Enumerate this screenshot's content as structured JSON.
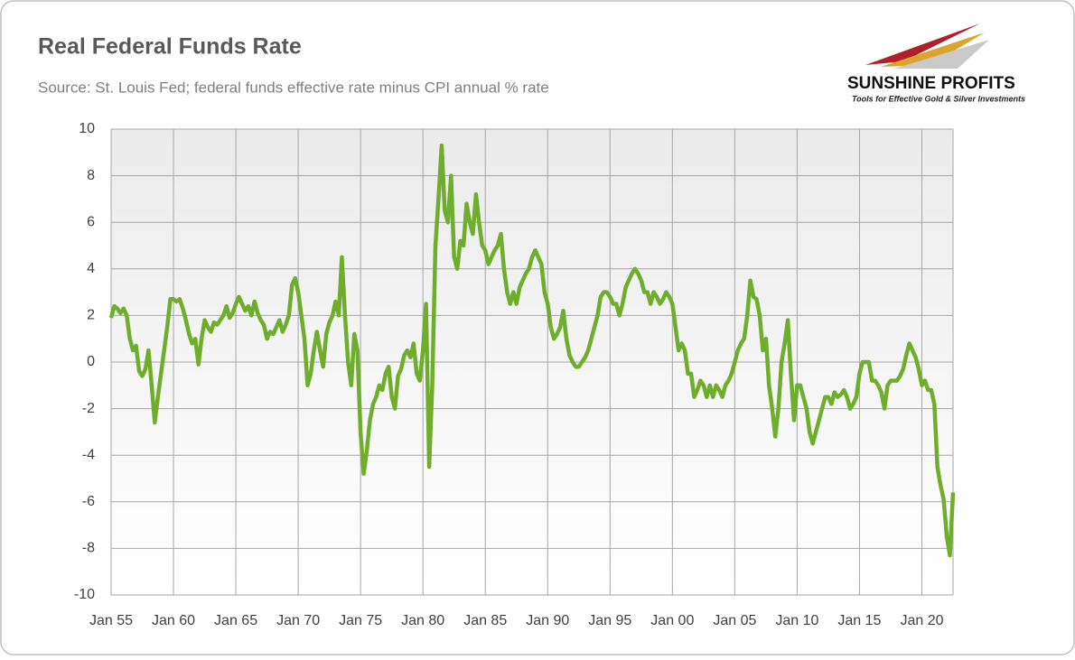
{
  "chart_data": {
    "type": "line",
    "title": "Real Federal Funds Rate",
    "subtitle": "Source: St. Louis Fed; federal funds effective rate minus CPI annual % rate",
    "x": [
      "Jan 55",
      "Apr 55",
      "Jul 55",
      "Oct 55",
      "Jan 56",
      "Apr 56",
      "Jul 56",
      "Oct 56",
      "Jan 57",
      "Apr 57",
      "Jul 57",
      "Oct 57",
      "Jan 58",
      "Apr 58",
      "Jul 58",
      "Oct 58",
      "Jan 59",
      "Apr 59",
      "Jul 59",
      "Oct 59",
      "Jan 60",
      "Apr 60",
      "Jul 60",
      "Oct 60",
      "Jan 61",
      "Apr 61",
      "Jul 61",
      "Oct 61",
      "Jan 62",
      "Apr 62",
      "Jul 62",
      "Oct 62",
      "Jan 63",
      "Apr 63",
      "Jul 63",
      "Oct 63",
      "Jan 64",
      "Apr 64",
      "Jul 64",
      "Oct 64",
      "Jan 65",
      "Apr 65",
      "Jul 65",
      "Oct 65",
      "Jan 66",
      "Apr 66",
      "Jul 66",
      "Oct 66",
      "Jan 67",
      "Apr 67",
      "Jul 67",
      "Oct 67",
      "Jan 68",
      "Apr 68",
      "Jul 68",
      "Oct 68",
      "Jan 69",
      "Apr 69",
      "Jul 69",
      "Oct 69",
      "Jan 70",
      "Apr 70",
      "Jul 70",
      "Oct 70",
      "Jan 71",
      "Apr 71",
      "Jul 71",
      "Oct 71",
      "Jan 72",
      "Apr 72",
      "Jul 72",
      "Oct 72",
      "Jan 73",
      "Apr 73",
      "Jul 73",
      "Oct 73",
      "Jan 74",
      "Apr 74",
      "Jul 74",
      "Oct 74",
      "Jan 75",
      "Apr 75",
      "Jul 75",
      "Oct 75",
      "Jan 76",
      "Apr 76",
      "Jul 76",
      "Oct 76",
      "Jan 77",
      "Apr 77",
      "Jul 77",
      "Oct 77",
      "Jan 78",
      "Apr 78",
      "Jul 78",
      "Oct 78",
      "Jan 79",
      "Apr 79",
      "Jul 79",
      "Oct 79",
      "Jan 80",
      "Apr 80",
      "Jul 80",
      "Oct 80",
      "Jan 81",
      "Apr 81",
      "Jul 81",
      "Oct 81",
      "Jan 82",
      "Apr 82",
      "Jul 82",
      "Oct 82",
      "Jan 83",
      "Apr 83",
      "Jul 83",
      "Oct 83",
      "Jan 84",
      "Apr 84",
      "Jul 84",
      "Oct 84",
      "Jan 85",
      "Apr 85",
      "Jul 85",
      "Oct 85",
      "Jan 86",
      "Apr 86",
      "Jul 86",
      "Oct 86",
      "Jan 87",
      "Apr 87",
      "Jul 87",
      "Oct 87",
      "Jan 88",
      "Apr 88",
      "Jul 88",
      "Oct 88",
      "Jan 89",
      "Apr 89",
      "Jul 89",
      "Oct 89",
      "Jan 90",
      "Apr 90",
      "Jul 90",
      "Oct 90",
      "Jan 91",
      "Apr 91",
      "Jul 91",
      "Oct 91",
      "Jan 92",
      "Apr 92",
      "Jul 92",
      "Oct 92",
      "Jan 93",
      "Apr 93",
      "Jul 93",
      "Oct 93",
      "Jan 94",
      "Apr 94",
      "Jul 94",
      "Oct 94",
      "Jan 95",
      "Apr 95",
      "Jul 95",
      "Oct 95",
      "Jan 96",
      "Apr 96",
      "Jul 96",
      "Oct 96",
      "Jan 97",
      "Apr 97",
      "Jul 97",
      "Oct 97",
      "Jan 98",
      "Apr 98",
      "Jul 98",
      "Oct 98",
      "Jan 99",
      "Apr 99",
      "Jul 99",
      "Oct 99",
      "Jan 00",
      "Apr 00",
      "Jul 00",
      "Oct 00",
      "Jan 01",
      "Apr 01",
      "Jul 01",
      "Oct 01",
      "Jan 02",
      "Apr 02",
      "Jul 02",
      "Oct 02",
      "Jan 03",
      "Apr 03",
      "Jul 03",
      "Oct 03",
      "Jan 04",
      "Apr 04",
      "Jul 04",
      "Oct 04",
      "Jan 05",
      "Apr 05",
      "Jul 05",
      "Oct 05",
      "Jan 06",
      "Apr 06",
      "Jul 06",
      "Oct 06",
      "Jan 07",
      "Apr 07",
      "Jul 07",
      "Oct 07",
      "Jan 08",
      "Apr 08",
      "Jul 08",
      "Oct 08",
      "Jan 09",
      "Apr 09",
      "Jul 09",
      "Oct 09",
      "Jan 10",
      "Apr 10",
      "Jul 10",
      "Oct 10",
      "Jan 11",
      "Apr 11",
      "Jul 11",
      "Oct 11",
      "Jan 12",
      "Apr 12",
      "Jul 12",
      "Oct 12",
      "Jan 13",
      "Apr 13",
      "Jul 13",
      "Oct 13",
      "Jan 14",
      "Apr 14",
      "Jul 14",
      "Oct 14",
      "Jan 15",
      "Apr 15",
      "Jul 15",
      "Oct 15",
      "Jan 16",
      "Apr 16",
      "Jul 16",
      "Oct 16",
      "Jan 17",
      "Apr 17",
      "Jul 17",
      "Oct 17",
      "Jan 18",
      "Apr 18",
      "Jul 18",
      "Oct 18",
      "Jan 19",
      "Apr 19",
      "Jul 19",
      "Oct 19",
      "Jan 20",
      "Apr 20",
      "Jul 20",
      "Oct 20",
      "Jan 21",
      "Apr 21",
      "Jul 21",
      "Oct 21",
      "Jan 22",
      "Apr 22",
      "Jul 22"
    ],
    "series": [
      {
        "name": "Real Federal Funds Rate",
        "color": "#6fae2c",
        "values": [
          1.9,
          2.4,
          2.3,
          2.1,
          2.3,
          2.0,
          1.0,
          0.5,
          0.7,
          -0.4,
          -0.6,
          -0.3,
          0.5,
          -1.0,
          -2.6,
          -1.5,
          -0.5,
          0.5,
          1.5,
          2.7,
          2.7,
          2.6,
          2.7,
          2.3,
          1.8,
          1.2,
          0.8,
          1.0,
          -0.1,
          1.0,
          1.8,
          1.5,
          1.3,
          1.7,
          1.6,
          1.8,
          2.0,
          2.4,
          1.9,
          2.1,
          2.5,
          2.8,
          2.5,
          2.2,
          2.4,
          2.0,
          2.6,
          2.1,
          1.8,
          1.6,
          1.0,
          1.3,
          1.2,
          1.5,
          1.8,
          1.3,
          1.6,
          2.0,
          3.3,
          3.6,
          3.0,
          2.0,
          1.0,
          -1.0,
          -0.5,
          0.5,
          1.3,
          0.5,
          -0.2,
          1.2,
          1.7,
          2.0,
          2.6,
          2.0,
          4.5,
          2.0,
          0.0,
          -1.0,
          1.2,
          0.5,
          -3.0,
          -4.8,
          -3.8,
          -2.5,
          -1.8,
          -1.5,
          -1.0,
          -1.2,
          -0.5,
          -0.2,
          -1.5,
          -2.0,
          -0.6,
          -0.3,
          0.3,
          0.5,
          0.2,
          0.8,
          -0.5,
          -0.8,
          0.5,
          2.5,
          -4.5,
          -1.0,
          5.0,
          7.0,
          9.3,
          6.5,
          6.0,
          8.0,
          4.5,
          4.0,
          5.2,
          5.0,
          6.8,
          6.0,
          5.5,
          7.2,
          6.0,
          5.0,
          4.8,
          4.2,
          4.5,
          4.8,
          5.0,
          5.5,
          4.0,
          3.0,
          2.5,
          3.0,
          2.5,
          3.2,
          3.5,
          3.8,
          4.0,
          4.5,
          4.8,
          4.5,
          4.2,
          3.0,
          2.5,
          1.5,
          1.0,
          1.2,
          1.5,
          2.2,
          1.0,
          0.3,
          0.0,
          -0.2,
          -0.2,
          0.0,
          0.2,
          0.5,
          1.0,
          1.5,
          2.0,
          2.8,
          3.0,
          3.0,
          2.8,
          2.5,
          2.5,
          2.0,
          2.5,
          3.2,
          3.5,
          3.8,
          4.0,
          3.8,
          3.5,
          3.0,
          3.0,
          2.5,
          3.0,
          2.8,
          2.5,
          2.7,
          3.0,
          2.8,
          2.5,
          1.5,
          0.5,
          0.8,
          0.5,
          -0.5,
          -0.5,
          -1.5,
          -1.2,
          -0.8,
          -1.0,
          -1.5,
          -1.0,
          -1.5,
          -1.0,
          -1.2,
          -1.5,
          -1.0,
          -0.8,
          -0.5,
          0.0,
          0.5,
          0.8,
          1.0,
          2.0,
          3.5,
          2.8,
          2.7,
          2.0,
          0.5,
          1.0,
          -1.0,
          -2.0,
          -3.2,
          -2.0,
          0.0,
          0.8,
          1.8,
          -0.5,
          -2.5,
          -1.0,
          -1.0,
          -1.5,
          -2.0,
          -3.0,
          -3.5,
          -3.0,
          -2.5,
          -2.0,
          -1.5,
          -1.5,
          -1.8,
          -1.3,
          -1.5,
          -1.4,
          -1.2,
          -1.5,
          -2.0,
          -1.8,
          -1.5,
          -0.5,
          0.0,
          0.0,
          0.0,
          -0.8,
          -0.8,
          -1.0,
          -1.3,
          -2.0,
          -1.0,
          -0.8,
          -0.8,
          -0.8,
          -0.6,
          -0.3,
          0.3,
          0.8,
          0.5,
          0.2,
          -0.3,
          -1.0,
          -0.8,
          -1.2,
          -1.2,
          -1.8,
          -4.5,
          -5.3,
          -5.9,
          -7.5,
          -8.3,
          -5.6
        ]
      }
    ],
    "xticks": [
      "Jan 55",
      "Jan 60",
      "Jan 65",
      "Jan 70",
      "Jan 75",
      "Jan 80",
      "Jan 85",
      "Jan 90",
      "Jan 95",
      "Jan 00",
      "Jan 05",
      "Jan 10",
      "Jan 15",
      "Jan 20"
    ],
    "xlim": [
      "Jan 55",
      "Jul 22"
    ],
    "ylim": [
      -10,
      10
    ],
    "yticks": [
      -10,
      -8,
      -6,
      -4,
      -2,
      0,
      2,
      4,
      6,
      8,
      10
    ],
    "grid": true
  },
  "logo": {
    "name": "SUNSHINE PROFITS",
    "tagline": "Tools for Effective Gold & Silver Investments"
  }
}
